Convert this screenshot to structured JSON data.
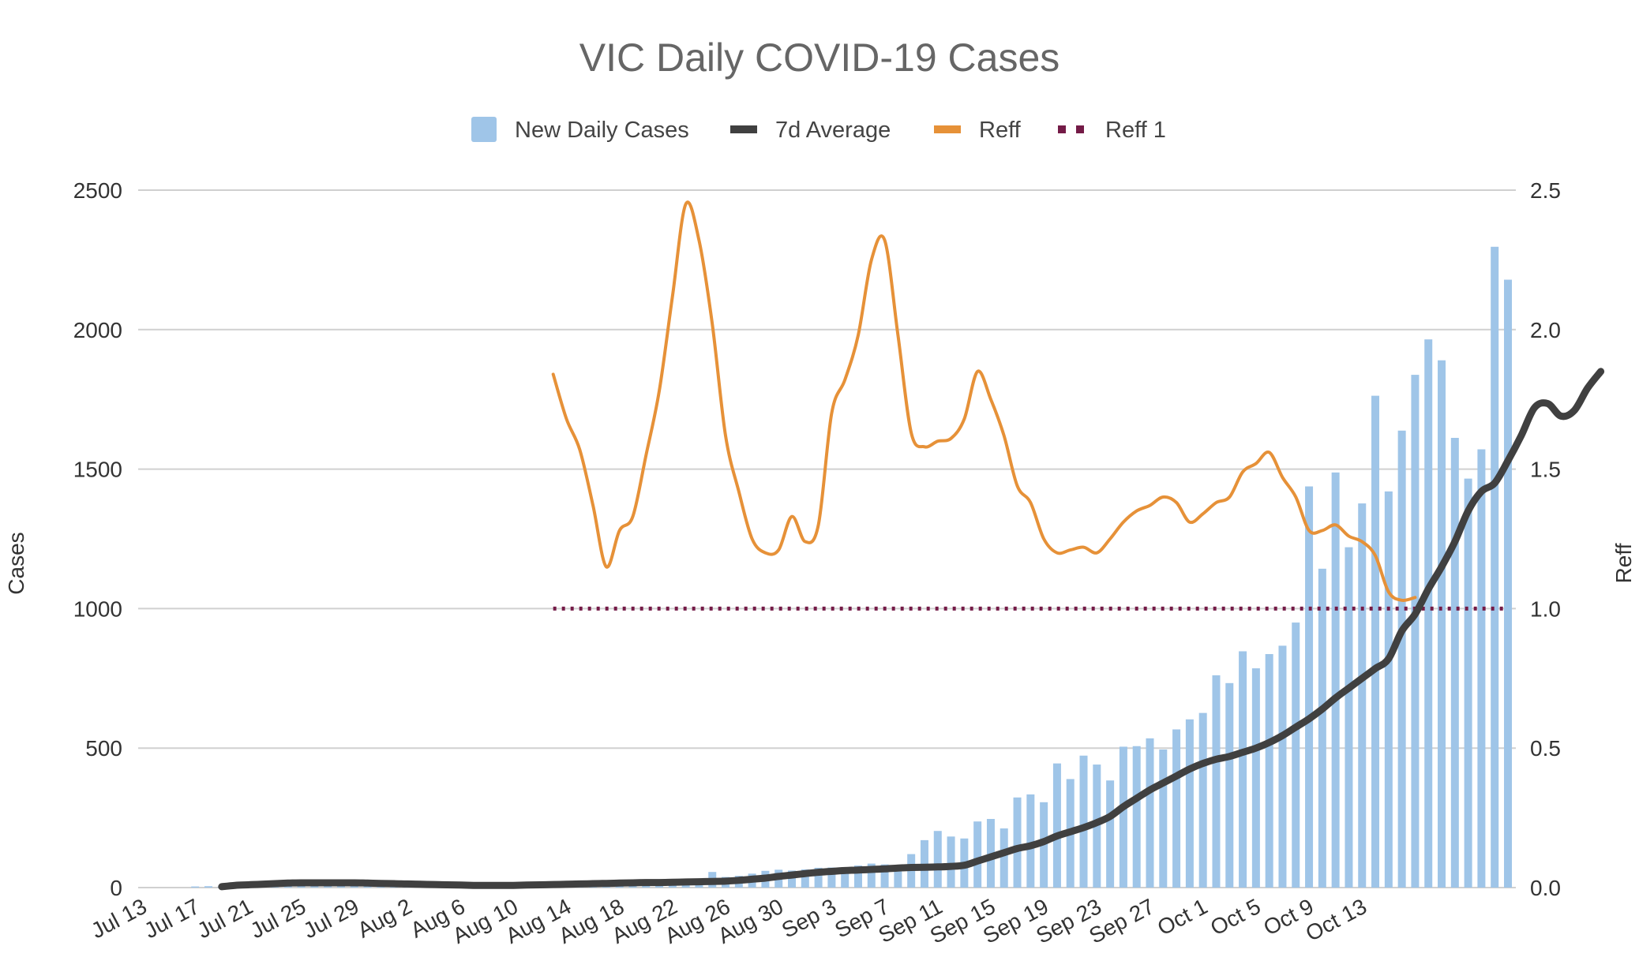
{
  "chart_data": {
    "type": "bar+line",
    "title": "VIC Daily COVID-19 Cases",
    "ylabel": "Cases",
    "y2label": "Reff",
    "ylim": [
      0,
      2500
    ],
    "y2lim": [
      0.0,
      2.5
    ],
    "yticks": [
      "0",
      "500",
      "1000",
      "1500",
      "2000",
      "2500"
    ],
    "y2ticks": [
      "0.0",
      "0.5",
      "1.0",
      "1.5",
      "2.0",
      "2.5"
    ],
    "legend_position": "top-center",
    "grid": true,
    "xtick_labels": [
      "Jul 13",
      "Jul 17",
      "Jul 21",
      "Jul 25",
      "Jul 29",
      "Aug 2",
      "Aug 6",
      "Aug 10",
      "Aug 14",
      "Aug 18",
      "Aug 22",
      "Aug 26",
      "Aug 30",
      "Sep 3",
      "Sep 7",
      "Sep 11",
      "Sep 15",
      "Sep 19",
      "Sep 23",
      "Sep 27",
      "Oct 1",
      "Oct 5",
      "Oct 9",
      "Oct 13"
    ],
    "series": [
      {
        "name": "New Daily Cases",
        "kind": "bar",
        "axis": "left",
        "color": "#9fc5e8",
        "start_day": 0,
        "values": [
          0,
          0,
          0,
          0,
          4,
          5,
          3,
          11,
          14,
          16,
          17,
          15,
          18,
          17,
          19,
          17,
          14,
          14,
          10,
          11,
          10,
          8,
          6,
          6,
          8,
          9,
          11,
          14,
          15,
          11,
          13,
          16,
          18,
          19,
          16,
          17,
          14,
          20,
          23,
          25,
          26,
          20,
          28,
          56,
          38,
          42,
          50,
          60,
          64,
          61,
          65,
          71,
          72,
          73,
          79,
          86,
          83,
          73,
          120,
          170,
          203,
          183,
          176,
          237,
          246,
          212,
          323,
          334,
          306,
          445,
          389,
          473,
          441,
          384,
          505,
          507,
          535,
          495,
          567,
          603,
          626,
          761,
          733,
          847,
          786,
          837,
          867,
          950,
          1438,
          1143,
          1488,
          1220,
          1377,
          1763,
          1420,
          1638,
          1838,
          1965,
          1890,
          1612,
          1466,
          1571,
          2297,
          2179
        ]
      },
      {
        "name": "7d Average",
        "kind": "line",
        "axis": "left",
        "color": "#404040",
        "start_day": 6,
        "values": [
          3,
          8,
          10,
          12,
          14,
          16,
          17,
          17,
          17,
          17,
          17,
          16,
          15,
          14,
          13,
          12,
          11,
          10,
          9,
          8,
          8,
          8,
          8,
          9,
          10,
          11,
          12,
          13,
          14,
          15,
          16,
          17,
          18,
          18,
          19,
          20,
          21,
          22,
          23,
          26,
          30,
          34,
          40,
          45,
          50,
          55,
          58,
          61,
          63,
          65,
          67,
          70,
          72,
          73,
          74,
          76,
          80,
          95,
          110,
          125,
          140,
          150,
          165,
          185,
          200,
          215,
          233,
          255,
          290,
          320,
          350,
          375,
          400,
          425,
          445,
          460,
          470,
          485,
          500,
          520,
          545,
          575,
          605,
          640,
          680,
          715,
          750,
          785,
          820,
          920,
          980,
          1070,
          1150,
          1240,
          1350,
          1420,
          1450,
          1530,
          1620,
          1720,
          1735,
          1690,
          1710,
          1790,
          1850
        ]
      },
      {
        "name": "Reff",
        "kind": "line",
        "axis": "right",
        "color": "#e69138",
        "start_day": 31,
        "values": [
          1.84,
          1.68,
          1.57,
          1.37,
          1.15,
          1.28,
          1.33,
          1.55,
          1.78,
          2.12,
          2.45,
          2.32,
          2.02,
          1.62,
          1.42,
          1.25,
          1.2,
          1.21,
          1.33,
          1.24,
          1.3,
          1.7,
          1.82,
          1.98,
          2.25,
          2.32,
          1.98,
          1.63,
          1.58,
          1.6,
          1.61,
          1.68,
          1.85,
          1.75,
          1.62,
          1.44,
          1.38,
          1.25,
          1.2,
          1.21,
          1.22,
          1.2,
          1.25,
          1.31,
          1.35,
          1.37,
          1.4,
          1.38,
          1.31,
          1.34,
          1.38,
          1.4,
          1.49,
          1.52,
          1.56,
          1.47,
          1.4,
          1.28,
          1.28,
          1.3,
          1.26,
          1.24,
          1.19,
          1.06,
          1.03,
          1.04
        ]
      },
      {
        "name": "Reff 1",
        "kind": "dotted-line",
        "axis": "right",
        "color": "#741b47",
        "start_day": 31,
        "end_day": 103,
        "value": 1.0
      }
    ]
  }
}
